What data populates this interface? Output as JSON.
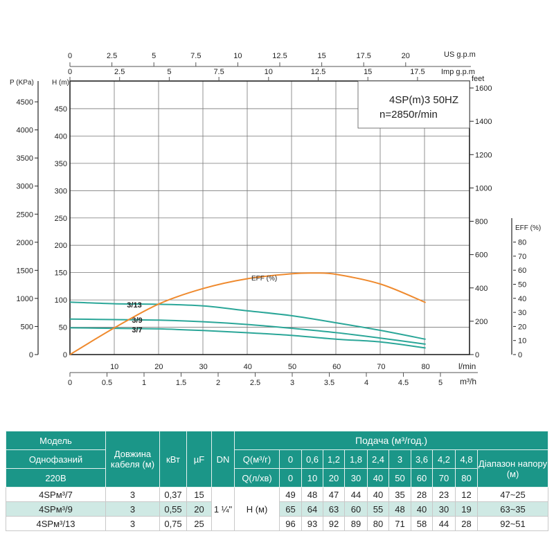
{
  "chart_data": {
    "type": "line",
    "title": "4SP(m)3  50HZ",
    "subtitle": "n=2850r/min",
    "x": [
      0,
      10,
      20,
      30,
      40,
      50,
      60,
      70,
      80
    ],
    "xlabel": "l/min",
    "xlim": [
      0,
      90
    ],
    "x_ticks": [
      10,
      20,
      30,
      40,
      50,
      60,
      70,
      80
    ],
    "x2_label": "m³/h",
    "x2_ticks": [
      "0",
      "0.5",
      "1",
      "1.5",
      "2",
      "2.5",
      "3",
      "3.5",
      "4",
      "4.5",
      "5"
    ],
    "us_gpm_label": "US g.p.m",
    "us_gpm_ticks": [
      "0",
      "2.5",
      "5",
      "7.5",
      "10",
      "12.5",
      "15",
      "17.5",
      "20"
    ],
    "imp_gpm_label": "Imp g.p.m",
    "imp_gpm_ticks": [
      "0",
      "2.5",
      "5",
      "7.5",
      "10",
      "12.5",
      "15",
      "17.5"
    ],
    "ylabel": "H (m)",
    "ylim": [
      0,
      500
    ],
    "y_ticks": [
      "0",
      "50",
      "100",
      "150",
      "200",
      "250",
      "300",
      "350",
      "400",
      "450"
    ],
    "p_label": "P (KPa)",
    "p_ticks": [
      "0",
      "500",
      "1000",
      "1500",
      "2000",
      "2500",
      "3000",
      "3500",
      "4000",
      "4500"
    ],
    "feet_label": "feet",
    "feet_ticks": [
      "0",
      "200",
      "400",
      "600",
      "800",
      "1000",
      "1200",
      "1400",
      "1600"
    ],
    "eff_axis_label": "EFF (%)",
    "eff_ticks": [
      "0",
      "10",
      "20",
      "30",
      "40",
      "50",
      "60",
      "70",
      "80"
    ],
    "grid": true,
    "series": [
      {
        "name": "3/7",
        "color": "#2aa698",
        "values": [
          49,
          48,
          47,
          44,
          40,
          35,
          28,
          23,
          12
        ]
      },
      {
        "name": "3/9",
        "color": "#2aa698",
        "values": [
          65,
          64,
          63,
          60,
          55,
          48,
          40,
          30,
          19
        ]
      },
      {
        "name": "3/13",
        "color": "#2aa698",
        "values": [
          96,
          93,
          92,
          89,
          80,
          71,
          58,
          44,
          28
        ]
      },
      {
        "name": "EFF (%)",
        "color": "#ef8a2e",
        "axis": "eff",
        "x": [
          0,
          10,
          20,
          30,
          40,
          50,
          55,
          60,
          70,
          80
        ],
        "values": [
          0,
          19,
          36,
          47,
          54,
          57.5,
          58,
          57,
          50,
          37
        ]
      }
    ]
  },
  "table": {
    "model_label": "Модель",
    "phase_label": "Однофазний",
    "voltage_label": "220В",
    "cable_label": "Довжина кабеля (м)",
    "kw_label": "кВт",
    "uf_label": "µF",
    "dn_label": "DN",
    "flow_label": "Подача (м³/год.)",
    "q_m3_label": "Q(м³/г)",
    "q_lmin_label": "Q(л/хв)",
    "q_m3": [
      "0",
      "0,6",
      "1,2",
      "1,8",
      "2,4",
      "3",
      "3,6",
      "4,2",
      "4,8"
    ],
    "q_lmin": [
      "0",
      "10",
      "20",
      "30",
      "40",
      "50",
      "60",
      "70",
      "80"
    ],
    "range_label": "Діапазон напору (м)",
    "dn_value": "1 ¼\"",
    "h_label": "H (м)",
    "rows": [
      {
        "model": "4SPм³/7",
        "cable": "3",
        "kw": "0,37",
        "uf": "15",
        "h": [
          "49",
          "48",
          "47",
          "44",
          "40",
          "35",
          "28",
          "23",
          "12"
        ],
        "range": "47~25"
      },
      {
        "model": "4SPм³/9",
        "cable": "3",
        "kw": "0,55",
        "uf": "20",
        "h": [
          "65",
          "64",
          "63",
          "60",
          "55",
          "48",
          "40",
          "30",
          "19"
        ],
        "range": "63~35"
      },
      {
        "model": "4SPм³/13",
        "cable": "3",
        "kw": "0,75",
        "uf": "25",
        "h": [
          "96",
          "93",
          "92",
          "89",
          "80",
          "71",
          "58",
          "44",
          "28"
        ],
        "range": "92~51"
      }
    ]
  }
}
